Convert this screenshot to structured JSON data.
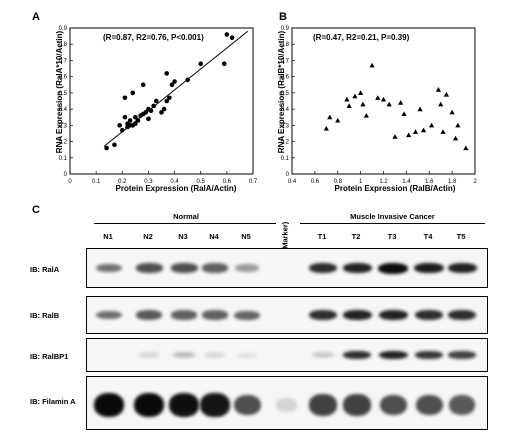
{
  "panels": {
    "a": "A",
    "b": "B",
    "c": "C"
  },
  "chart_data": [
    {
      "type": "scatter",
      "title": "(R=0.87, R2=0.76, P<0.001)",
      "xlabel": "Protein Expression (RalA/Actin)",
      "ylabel": "RNA Expression (RalA*10/Actin)",
      "xlim": [
        0,
        0.7
      ],
      "ylim": [
        0,
        0.9
      ],
      "xticks": [
        "0",
        "0.1",
        "0.2",
        "0.3",
        "0.4",
        "0.5",
        "0.6",
        "0.7"
      ],
      "yticks": [
        "0",
        "0.1",
        "0.2",
        "0.3",
        "0.4",
        "0.5",
        "0.6",
        "0.7",
        "0.8",
        "0.9"
      ],
      "marker": "circle",
      "regression_line": {
        "x": [
          0.13,
          0.68
        ],
        "y": [
          0.17,
          0.88
        ]
      },
      "x": [
        0.14,
        0.17,
        0.19,
        0.2,
        0.21,
        0.21,
        0.22,
        0.22,
        0.23,
        0.23,
        0.24,
        0.24,
        0.25,
        0.25,
        0.26,
        0.27,
        0.28,
        0.28,
        0.29,
        0.3,
        0.3,
        0.31,
        0.32,
        0.33,
        0.35,
        0.36,
        0.37,
        0.37,
        0.38,
        0.39,
        0.4,
        0.45,
        0.5,
        0.59,
        0.6,
        0.62
      ],
      "y": [
        0.16,
        0.18,
        0.3,
        0.27,
        0.35,
        0.47,
        0.29,
        0.31,
        0.3,
        0.33,
        0.3,
        0.5,
        0.31,
        0.35,
        0.33,
        0.36,
        0.37,
        0.55,
        0.38,
        0.34,
        0.4,
        0.39,
        0.42,
        0.45,
        0.38,
        0.4,
        0.45,
        0.62,
        0.47,
        0.55,
        0.57,
        0.58,
        0.68,
        0.68,
        0.86,
        0.84
      ]
    },
    {
      "type": "scatter",
      "title": "(R=0.47, R2=0.21, P=0.39)",
      "xlabel": "Protein Expression (RalB/Actin)",
      "ylabel": "RNA Expression (RalB*10/Actin)",
      "xlim": [
        0.4,
        2.0
      ],
      "ylim": [
        0,
        0.9
      ],
      "xticks": [
        "0.4",
        "0.6",
        "0.8",
        "1",
        "1.2",
        "1.4",
        "1.6",
        "1.8",
        "2"
      ],
      "yticks": [
        "0",
        "0.1",
        "0.2",
        "0.3",
        "0.4",
        "0.5",
        "0.6",
        "0.7",
        "0.8",
        "0.9"
      ],
      "marker": "triangle",
      "x": [
        0.7,
        0.73,
        0.8,
        0.88,
        0.9,
        0.95,
        1.0,
        1.02,
        1.05,
        1.1,
        1.15,
        1.2,
        1.25,
        1.3,
        1.35,
        1.38,
        1.42,
        1.48,
        1.52,
        1.55,
        1.62,
        1.68,
        1.7,
        1.72,
        1.75,
        1.8,
        1.83,
        1.85,
        1.92
      ],
      "y": [
        0.28,
        0.35,
        0.33,
        0.46,
        0.42,
        0.48,
        0.5,
        0.43,
        0.36,
        0.67,
        0.47,
        0.46,
        0.43,
        0.23,
        0.44,
        0.37,
        0.24,
        0.26,
        0.4,
        0.27,
        0.3,
        0.52,
        0.43,
        0.26,
        0.49,
        0.38,
        0.22,
        0.3,
        0.16
      ]
    }
  ],
  "blot": {
    "groups": {
      "normal": "Normal",
      "cancer": "Muscle Invasive Cancer"
    },
    "lanes": [
      "N1",
      "N2",
      "N3",
      "N4",
      "N5",
      "(Marker)",
      "T1",
      "T2",
      "T3",
      "T4",
      "T5"
    ],
    "rows": [
      {
        "label": "IB: RalA",
        "intensity": [
          0.55,
          0.7,
          0.7,
          0.62,
          0.35,
          0,
          0.85,
          0.9,
          1.0,
          0.92,
          0.9
        ]
      },
      {
        "label": "IB: RalB",
        "intensity": [
          0.55,
          0.65,
          0.62,
          0.62,
          0.6,
          0,
          0.85,
          0.9,
          0.9,
          0.85,
          0.85
        ]
      },
      {
        "label": "IB: RalBP1",
        "intensity": [
          0,
          0.08,
          0.2,
          0.08,
          0.05,
          0,
          0.15,
          0.85,
          0.9,
          0.8,
          0.75
        ]
      },
      {
        "label": "IB: Filamin A",
        "intensity": [
          1.0,
          1.0,
          0.98,
          0.95,
          0.7,
          0.1,
          0.75,
          0.75,
          0.7,
          0.7,
          0.65
        ]
      }
    ]
  }
}
